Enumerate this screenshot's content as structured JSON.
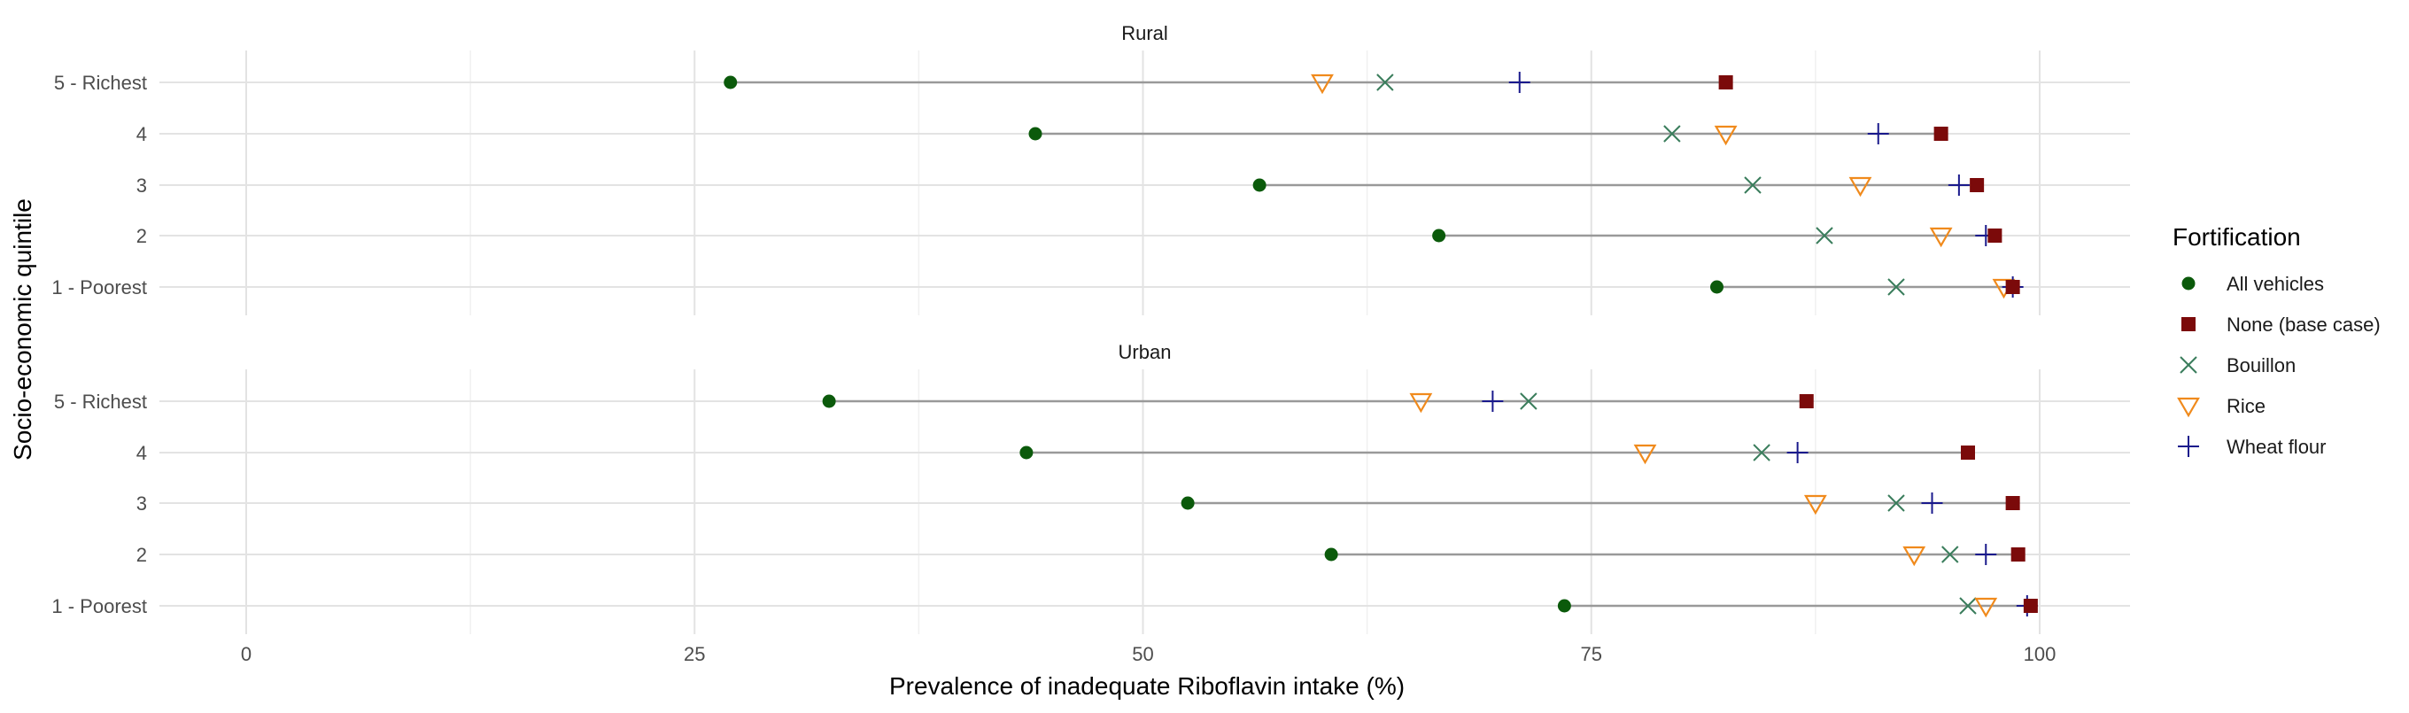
{
  "chart_data": {
    "type": "dot",
    "xlabel": "Prevalence of inadequate Riboflavin intake (%)",
    "ylabel": "Socio-economic quintile",
    "xlim": [
      -5,
      105
    ],
    "xticks": [
      0,
      25,
      50,
      75,
      100
    ],
    "grid": true,
    "legend": {
      "title": "Fortification",
      "placement": "right",
      "entries": [
        {
          "key": "all_vehicles",
          "label": "All vehicles",
          "color": "#0b5a0b",
          "marker": "circle"
        },
        {
          "key": "none",
          "label": "None (base case)",
          "color": "#7b0a0a",
          "marker": "square"
        },
        {
          "key": "bouillon",
          "label": "Bouillon",
          "color": "#3a7d5c",
          "marker": "x"
        },
        {
          "key": "rice",
          "label": "Rice",
          "color": "#f08a1c",
          "marker": "triangle-down"
        },
        {
          "key": "wheat_flour",
          "label": "Wheat flour",
          "color": "#1a1a8c",
          "marker": "plus"
        }
      ]
    },
    "segment_color": "#999999",
    "categories": [
      "5 - Richest",
      "4",
      "3",
      "2",
      "1 - Poorest"
    ],
    "panels": [
      {
        "title": "Rural",
        "rows": [
          {
            "quintile": "5 - Richest",
            "all_vehicles": 27,
            "none": 82.5,
            "bouillon": 63.5,
            "rice": 60,
            "wheat_flour": 71
          },
          {
            "quintile": "4",
            "all_vehicles": 44,
            "none": 94.5,
            "bouillon": 79.5,
            "rice": 82.5,
            "wheat_flour": 91
          },
          {
            "quintile": "3",
            "all_vehicles": 56.5,
            "none": 96.5,
            "bouillon": 84,
            "rice": 90,
            "wheat_flour": 95.5
          },
          {
            "quintile": "2",
            "all_vehicles": 66.5,
            "none": 97.5,
            "bouillon": 88,
            "rice": 94.5,
            "wheat_flour": 97
          },
          {
            "quintile": "1 - Poorest",
            "all_vehicles": 82,
            "none": 98.5,
            "bouillon": 92,
            "rice": 98,
            "wheat_flour": 98.5
          }
        ]
      },
      {
        "title": "Urban",
        "rows": [
          {
            "quintile": "5 - Richest",
            "all_vehicles": 32.5,
            "none": 87,
            "bouillon": 71.5,
            "rice": 65.5,
            "wheat_flour": 69.5
          },
          {
            "quintile": "4",
            "all_vehicles": 43.5,
            "none": 96,
            "bouillon": 84.5,
            "rice": 78,
            "wheat_flour": 86.5
          },
          {
            "quintile": "3",
            "all_vehicles": 52.5,
            "none": 98.5,
            "bouillon": 92,
            "rice": 87.5,
            "wheat_flour": 94
          },
          {
            "quintile": "2",
            "all_vehicles": 60.5,
            "none": 98.8,
            "bouillon": 95,
            "rice": 93,
            "wheat_flour": 97
          },
          {
            "quintile": "1 - Poorest",
            "all_vehicles": 73.5,
            "none": 99.5,
            "bouillon": 96,
            "rice": 97,
            "wheat_flour": 99.3
          }
        ]
      }
    ]
  }
}
